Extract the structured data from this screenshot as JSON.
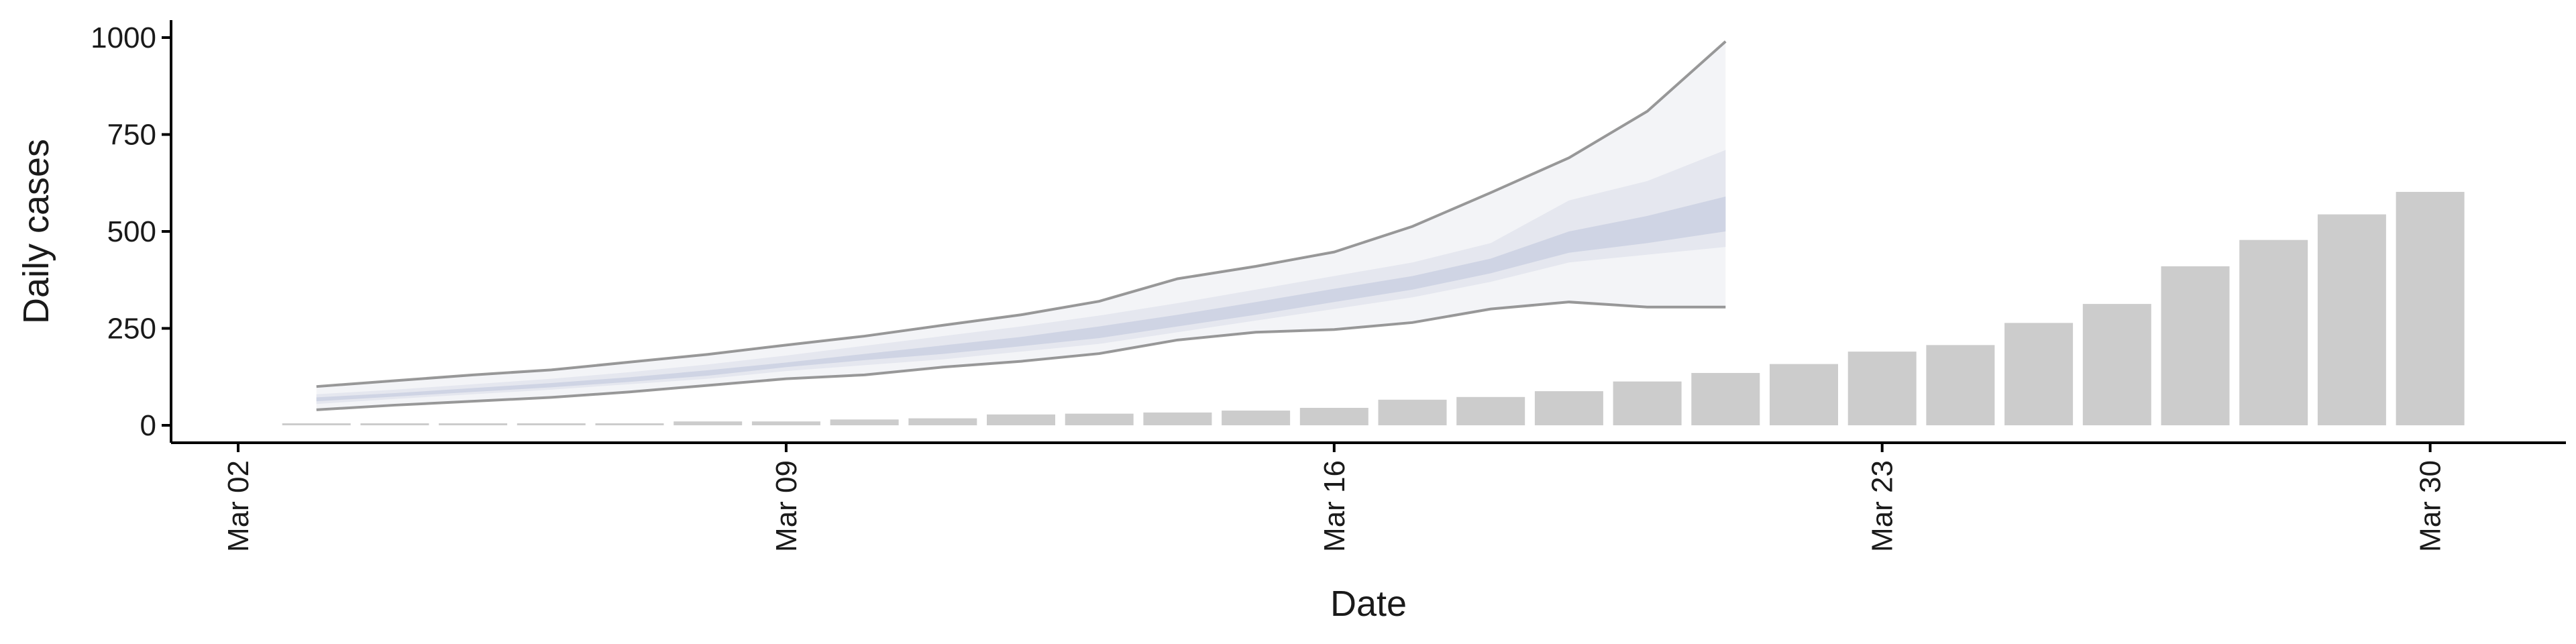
{
  "chart_data": {
    "type": "bar",
    "xlabel": "Date",
    "ylabel": "Daily cases",
    "x_ticks": [
      "Mar 02",
      "Mar 09",
      "Mar 16",
      "Mar 23",
      "Mar 30"
    ],
    "y_ticks": [
      0,
      250,
      500,
      750,
      1000
    ],
    "ylim": [
      -45,
      1045
    ],
    "xlim": [
      "2020-03-02",
      "2020-03-31"
    ],
    "grid": false,
    "legend": "none",
    "bars": {
      "name": "",
      "color": "#cccccc",
      "x": [
        "2020-03-03",
        "2020-03-04",
        "2020-03-05",
        "2020-03-06",
        "2020-03-07",
        "2020-03-08",
        "2020-03-09",
        "2020-03-10",
        "2020-03-11",
        "2020-03-12",
        "2020-03-13",
        "2020-03-14",
        "2020-03-15",
        "2020-03-16",
        "2020-03-17",
        "2020-03-18",
        "2020-03-19",
        "2020-03-20",
        "2020-03-21",
        "2020-03-22",
        "2020-03-23",
        "2020-03-24",
        "2020-03-25",
        "2020-03-26",
        "2020-03-27",
        "2020-03-28",
        "2020-03-29",
        "2020-03-30"
      ],
      "values": [
        1,
        2,
        2,
        3,
        5,
        10,
        10,
        15,
        18,
        28,
        30,
        33,
        38,
        45,
        66,
        73,
        88,
        113,
        135,
        158,
        190,
        207,
        264,
        313,
        410,
        478,
        544,
        602
      ]
    },
    "forecast": {
      "x": [
        "2020-03-03",
        "2020-03-04",
        "2020-03-05",
        "2020-03-06",
        "2020-03-07",
        "2020-03-08",
        "2020-03-09",
        "2020-03-10",
        "2020-03-11",
        "2020-03-12",
        "2020-03-13",
        "2020-03-14",
        "2020-03-15",
        "2020-03-16",
        "2020-03-17",
        "2020-03-18",
        "2020-03-19",
        "2020-03-20",
        "2020-03-21"
      ],
      "band_colors": [
        "#f3f4f7",
        "#e5e7ef",
        "#cfd4e4"
      ],
      "line_color": "#777777",
      "outer_upper": [
        100,
        115,
        130,
        143,
        163,
        183,
        207,
        230,
        258,
        285,
        320,
        378,
        410,
        447,
        513,
        600,
        690,
        810,
        990
      ],
      "outer_lower": [
        40,
        52,
        62,
        72,
        86,
        103,
        120,
        130,
        150,
        165,
        185,
        220,
        240,
        247,
        265,
        300,
        318,
        305,
        305
      ],
      "mid_upper": [
        80,
        92,
        106,
        120,
        137,
        157,
        180,
        205,
        230,
        255,
        283,
        315,
        350,
        385,
        420,
        470,
        580,
        630,
        710
      ],
      "mid_lower": [
        55,
        68,
        80,
        92,
        106,
        120,
        140,
        155,
        170,
        190,
        210,
        240,
        270,
        300,
        330,
        370,
        420,
        440,
        460
      ],
      "inner_upper": [
        72,
        83,
        96,
        109,
        124,
        142,
        162,
        184,
        206,
        228,
        255,
        285,
        318,
        352,
        385,
        430,
        500,
        540,
        590
      ],
      "inner_lower": [
        62,
        74,
        86,
        98,
        112,
        128,
        150,
        168,
        184,
        204,
        225,
        255,
        285,
        318,
        350,
        392,
        445,
        470,
        500
      ]
    }
  }
}
